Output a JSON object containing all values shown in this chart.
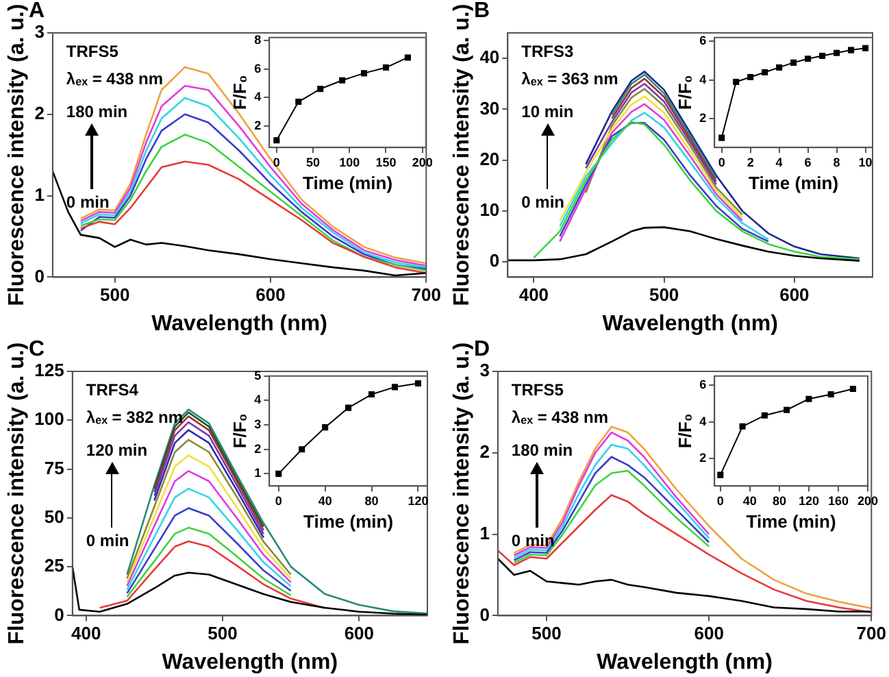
{
  "chart_data": [
    {
      "type": "line",
      "title": "A",
      "xlabel": "Wavelength (nm)",
      "ylabel": "Fluorescence intensity (a. u.)",
      "xlim": [
        460,
        700
      ],
      "xticks": [
        500,
        600,
        700
      ],
      "ylim": [
        0,
        3
      ],
      "yticks": [
        0,
        1,
        2,
        3
      ],
      "marker": "none",
      "annotations": [
        "TRFS5",
        "λₑₓ = 438 nm",
        "180 min",
        "0 min"
      ],
      "x": [
        460,
        470,
        478,
        490,
        500,
        510,
        520,
        530,
        545,
        560,
        580,
        600,
        620,
        640,
        660,
        680,
        700
      ],
      "series": [
        {
          "color": "#000000",
          "values": [
            1.3,
            0.8,
            0.52,
            0.48,
            0.37,
            0.46,
            0.4,
            0.42,
            0.38,
            0.33,
            0.28,
            0.22,
            0.17,
            0.12,
            0.08,
            0.02,
            0.05
          ]
        },
        {
          "color": "#e8393a",
          "values": [
            null,
            null,
            0.6,
            0.68,
            0.65,
            0.85,
            1.1,
            1.35,
            1.42,
            1.38,
            1.2,
            0.95,
            0.7,
            0.42,
            0.25,
            0.12,
            0.05
          ]
        },
        {
          "color": "#3ed43e",
          "values": [
            null,
            null,
            0.63,
            0.71,
            0.7,
            0.95,
            1.3,
            1.6,
            1.75,
            1.65,
            1.35,
            1.05,
            0.75,
            0.45,
            0.25,
            0.15,
            0.08
          ]
        },
        {
          "color": "#3b3bd0",
          "values": [
            null,
            null,
            0.57,
            0.74,
            0.73,
            1.0,
            1.45,
            1.8,
            2.0,
            1.9,
            1.55,
            1.15,
            0.8,
            0.5,
            0.28,
            0.15,
            0.1
          ]
        },
        {
          "color": "#33d4e8",
          "values": [
            null,
            null,
            0.66,
            0.77,
            0.76,
            1.05,
            1.55,
            1.95,
            2.2,
            2.1,
            1.7,
            1.25,
            0.85,
            0.55,
            0.3,
            0.18,
            0.12
          ]
        },
        {
          "color": "#e03ce0",
          "values": [
            null,
            null,
            0.69,
            0.8,
            0.79,
            1.1,
            1.65,
            2.1,
            2.35,
            2.3,
            1.85,
            1.35,
            0.9,
            0.58,
            0.33,
            0.21,
            0.14
          ]
        },
        {
          "color": "#f0a040",
          "values": [
            null,
            null,
            0.72,
            0.83,
            0.82,
            1.15,
            1.75,
            2.3,
            2.58,
            2.5,
            2.0,
            1.45,
            0.95,
            0.62,
            0.37,
            0.24,
            0.17
          ]
        }
      ]
    },
    {
      "type": "line",
      "xlabel": "Time (min)",
      "ylabel": "F/F₀",
      "xlim": [
        -10,
        205
      ],
      "xticks": [
        0,
        50,
        100,
        150,
        200
      ],
      "ylim": [
        0.5,
        8.2
      ],
      "yticks": [
        2,
        4,
        6,
        8
      ],
      "marker": "square",
      "x": [
        0,
        30,
        60,
        90,
        120,
        150,
        180
      ],
      "series": [
        {
          "color": "#000000",
          "values": [
            1.0,
            3.7,
            4.6,
            5.2,
            5.7,
            6.1,
            6.8
          ]
        }
      ]
    },
    {
      "type": "line",
      "title": "B",
      "xlabel": "Wavelength (nm)",
      "ylabel": "Fluorescence intensity (a. u.)",
      "xlim": [
        380,
        660
      ],
      "xticks": [
        400,
        500,
        600
      ],
      "ylim": [
        -3,
        45
      ],
      "yticks": [
        0,
        10,
        20,
        30,
        40
      ],
      "marker": "none",
      "annotations": [
        "TRFS3",
        "λₑₓ = 363 nm",
        "10 min",
        "0 min"
      ],
      "x": [
        380,
        400,
        420,
        440,
        460,
        475,
        485,
        500,
        520,
        540,
        560,
        580,
        600,
        620,
        650
      ],
      "series": [
        {
          "color": "#000000",
          "values": [
            0.3,
            0.3,
            0.5,
            1.5,
            4,
            6,
            6.7,
            6.8,
            6,
            4.5,
            3.2,
            2,
            1.2,
            0.7,
            0.2
          ]
        },
        {
          "color": "#3ed43e",
          "values": [
            null,
            0.8,
            6,
            16,
            24,
            27.5,
            27,
            23,
            16,
            10,
            6,
            3.5,
            2,
            1,
            0.5
          ]
        },
        {
          "color": "#3b3bd0",
          "values": [
            null,
            null,
            5,
            15.2,
            24.7,
            27.3,
            27.3,
            24,
            17,
            11,
            6.5,
            4,
            null,
            null,
            null
          ]
        },
        {
          "color": "#33d4e8",
          "values": [
            null,
            null,
            7,
            16.8,
            23.3,
            27.8,
            29.3,
            26.4,
            19.6,
            12.6,
            7.6,
            4.4,
            null,
            null,
            null
          ]
        },
        {
          "color": "#e03ce0",
          "values": [
            null,
            null,
            4,
            14.4,
            25.4,
            29.5,
            31,
            27.9,
            20.8,
            13.3,
            8.1,
            null,
            null,
            null,
            null
          ]
        },
        {
          "color": "#f0e040",
          "values": [
            null,
            null,
            8,
            17.6,
            26.1,
            30.9,
            32.5,
            29.3,
            21.8,
            14,
            8.7,
            null,
            null,
            null,
            null
          ]
        },
        {
          "color": "#8a8a3a",
          "values": [
            null,
            null,
            null,
            13.6,
            26.8,
            32.3,
            34,
            30.6,
            22.8,
            14.6,
            9.3,
            null,
            null,
            null,
            null
          ]
        },
        {
          "color": "#7a3ab0",
          "values": [
            null,
            null,
            null,
            18.4,
            27.5,
            33.3,
            35,
            31.5,
            23.5,
            15.2,
            null,
            null,
            null,
            null,
            null
          ]
        },
        {
          "color": "#a03030",
          "values": [
            null,
            null,
            null,
            null,
            28.2,
            34.2,
            36,
            32.4,
            24.1,
            15.8,
            null,
            null,
            null,
            null,
            null
          ]
        },
        {
          "color": "#2a8a7a",
          "values": [
            null,
            null,
            null,
            null,
            28.9,
            35,
            36.8,
            33.1,
            24.7,
            16.4,
            null,
            null,
            null,
            null,
            null
          ]
        },
        {
          "color": "#1a2a8a",
          "values": [
            null,
            null,
            null,
            19.2,
            29.6,
            35.6,
            37.4,
            33.8,
            25.4,
            17,
            10,
            5.6,
            3,
            1.5,
            0.7
          ]
        }
      ]
    },
    {
      "type": "line",
      "xlabel": "Time (min)",
      "ylabel": "F/F₀",
      "xlim": [
        -0.5,
        10.5
      ],
      "xticks": [
        0,
        2,
        4,
        6,
        8,
        10
      ],
      "ylim": [
        0.5,
        6.2
      ],
      "yticks": [
        2,
        4,
        6
      ],
      "marker": "square",
      "x": [
        0,
        1,
        2,
        3,
        4,
        5,
        6,
        7,
        8,
        9,
        10
      ],
      "series": [
        {
          "color": "#000000",
          "values": [
            1.0,
            3.9,
            4.15,
            4.4,
            4.65,
            4.9,
            5.1,
            5.25,
            5.4,
            5.55,
            5.65
          ]
        }
      ]
    },
    {
      "type": "line",
      "title": "C",
      "xlabel": "Wavelength (nm)",
      "ylabel": "Fluorescence intensity (a. u.)",
      "xlim": [
        390,
        650
      ],
      "xticks": [
        400,
        500,
        600
      ],
      "ylim": [
        0,
        125
      ],
      "yticks": [
        0,
        25,
        50,
        75,
        100,
        125
      ],
      "marker": "none",
      "annotations": [
        "TRFS4",
        "λₑₓ = 382 nm",
        "120 min",
        "0 min"
      ],
      "x": [
        390,
        395,
        410,
        430,
        450,
        465,
        475,
        490,
        510,
        530,
        550,
        575,
        600,
        625,
        650
      ],
      "series": [
        {
          "color": "#000000",
          "values": [
            25,
            3,
            2,
            6,
            14,
            20.5,
            22,
            21,
            16,
            11,
            7,
            4,
            2,
            1,
            0.5
          ]
        },
        {
          "color": "#e8393a",
          "values": [
            null,
            null,
            4,
            7.6,
            23.6,
            35.3,
            38,
            35.3,
            25.8,
            16,
            8.7,
            3.8,
            null,
            null,
            null
          ]
        },
        {
          "color": "#3ed43e",
          "values": [
            null,
            null,
            null,
            9.5,
            27.9,
            41.9,
            45,
            41.9,
            30.6,
            18.9,
            10.4,
            null,
            null,
            null,
            null
          ]
        },
        {
          "color": "#3b3bd0",
          "values": [
            null,
            null,
            null,
            11.4,
            34.1,
            51.2,
            55,
            51.2,
            37.4,
            23.1,
            12.7,
            null,
            null,
            null,
            null
          ]
        },
        {
          "color": "#33d4e8",
          "values": [
            null,
            null,
            null,
            13.3,
            40.3,
            60.5,
            65,
            60.5,
            44.2,
            27.3,
            15,
            null,
            null,
            null,
            null
          ]
        },
        {
          "color": "#e03ce0",
          "values": [
            null,
            null,
            null,
            15.2,
            45.9,
            68.8,
            74,
            68.8,
            50.3,
            31.1,
            17,
            null,
            null,
            null,
            null
          ]
        },
        {
          "color": "#f0e040",
          "values": [
            null,
            null,
            null,
            17.1,
            50.8,
            76.3,
            82,
            76.3,
            55.8,
            34.4,
            19,
            null,
            null,
            null,
            null
          ]
        },
        {
          "color": "#8a8a3a",
          "values": [
            null,
            null,
            null,
            19,
            55.8,
            83.7,
            90,
            83.7,
            61.2,
            37.8,
            21,
            null,
            null,
            null,
            null
          ]
        },
        {
          "color": "#2a2ab8",
          "values": [
            null,
            null,
            null,
            null,
            58.9,
            88.4,
            95,
            88.4,
            64.6,
            39.9,
            null,
            null,
            null,
            null,
            null
          ]
        },
        {
          "color": "#7a3ab0",
          "values": [
            null,
            null,
            null,
            null,
            61.4,
            92.1,
            99,
            92.1,
            67.3,
            41.8,
            null,
            null,
            null,
            null,
            null
          ]
        },
        {
          "color": "#a03030",
          "values": [
            null,
            null,
            null,
            null,
            63.2,
            94.9,
            102,
            94.9,
            69.4,
            43.7,
            null,
            null,
            null,
            null,
            null
          ]
        },
        {
          "color": "#1f5a2a",
          "values": [
            null,
            null,
            null,
            null,
            65,
            96.7,
            104,
            96.7,
            70.7,
            45.5,
            null,
            null,
            null,
            null,
            null
          ]
        },
        {
          "color": "#2a8a7a",
          "values": [
            null,
            null,
            null,
            21,
            66.8,
            98.4,
            105.5,
            98.4,
            72.5,
            47.3,
            25,
            11,
            5.5,
            2.2,
            1.1
          ]
        }
      ]
    },
    {
      "type": "line",
      "xlabel": "Time (min)",
      "ylabel": "F/F₀",
      "xlim": [
        -8,
        128
      ],
      "xticks": [
        0,
        40,
        80,
        120
      ],
      "ylim": [
        0.5,
        5
      ],
      "yticks": [
        1,
        2,
        3,
        4,
        5
      ],
      "marker": "square",
      "x": [
        0,
        20,
        40,
        60,
        80,
        100,
        120
      ],
      "series": [
        {
          "color": "#000000",
          "values": [
            1,
            2,
            2.9,
            3.7,
            4.25,
            4.55,
            4.7
          ]
        }
      ]
    },
    {
      "type": "line",
      "title": "D",
      "xlabel": "Wavelength (nm)",
      "ylabel": "Fluorescence intensity (a. u.)",
      "xlim": [
        470,
        700
      ],
      "xticks": [
        500,
        600,
        700
      ],
      "ylim": [
        0,
        3
      ],
      "yticks": [
        0,
        1,
        2,
        3
      ],
      "marker": "none",
      "annotations": [
        "TRFS5",
        "λₑₓ = 438 nm",
        "180 min",
        "0 min"
      ],
      "x": [
        470,
        480,
        490,
        500,
        510,
        520,
        530,
        540,
        550,
        560,
        580,
        600,
        620,
        640,
        660,
        680,
        700
      ],
      "series": [
        {
          "color": "#000000",
          "values": [
            0.7,
            0.5,
            0.55,
            0.42,
            0.4,
            0.38,
            0.42,
            0.44,
            0.38,
            0.35,
            0.28,
            0.24,
            0.18,
            0.1,
            0.08,
            0.05,
            0.05
          ]
        },
        {
          "color": "#e8393a",
          "values": [
            0.8,
            0.62,
            0.72,
            0.7,
            0.9,
            1.1,
            1.3,
            1.48,
            1.4,
            1.25,
            1.0,
            0.75,
            0.52,
            0.32,
            0.18,
            0.1,
            0.04
          ]
        },
        {
          "color": "#3ed43e",
          "values": [
            null,
            0.65,
            0.75,
            0.74,
            1.0,
            1.3,
            1.6,
            1.75,
            1.78,
            1.6,
            1.2,
            0.85,
            null,
            null,
            null,
            null,
            null
          ]
        },
        {
          "color": "#3b3bd0",
          "values": [
            null,
            0.68,
            0.78,
            0.77,
            1.05,
            1.4,
            1.75,
            1.95,
            1.85,
            1.7,
            1.3,
            0.9,
            null,
            null,
            null,
            null,
            null
          ]
        },
        {
          "color": "#33d4e8",
          "values": [
            null,
            0.71,
            0.81,
            0.8,
            1.1,
            1.5,
            1.85,
            2.1,
            2.05,
            1.85,
            1.4,
            0.95,
            null,
            null,
            null,
            null,
            null
          ]
        },
        {
          "color": "#e03ce0",
          "values": [
            null,
            0.74,
            0.84,
            0.83,
            1.15,
            1.6,
            2.0,
            2.25,
            2.15,
            1.95,
            1.45,
            1.0,
            null,
            null,
            null,
            null,
            null
          ]
        },
        {
          "color": "#f0a040",
          "values": [
            null,
            0.77,
            0.87,
            0.86,
            1.2,
            1.65,
            2.05,
            2.32,
            2.25,
            2.05,
            1.55,
            1.1,
            0.7,
            0.44,
            0.27,
            0.17,
            0.09
          ]
        }
      ]
    },
    {
      "type": "line",
      "xlabel": "Time (min)",
      "ylabel": "F/F₀",
      "xlim": [
        -8,
        200
      ],
      "xticks": [
        0,
        40,
        80,
        120,
        160,
        200
      ],
      "ylim": [
        0.5,
        6.5
      ],
      "yticks": [
        2,
        4,
        6
      ],
      "marker": "square",
      "x": [
        0,
        30,
        60,
        90,
        120,
        150,
        180
      ],
      "series": [
        {
          "color": "#000000",
          "values": [
            1.1,
            3.75,
            4.35,
            4.65,
            5.25,
            5.5,
            5.8
          ]
        }
      ]
    }
  ]
}
